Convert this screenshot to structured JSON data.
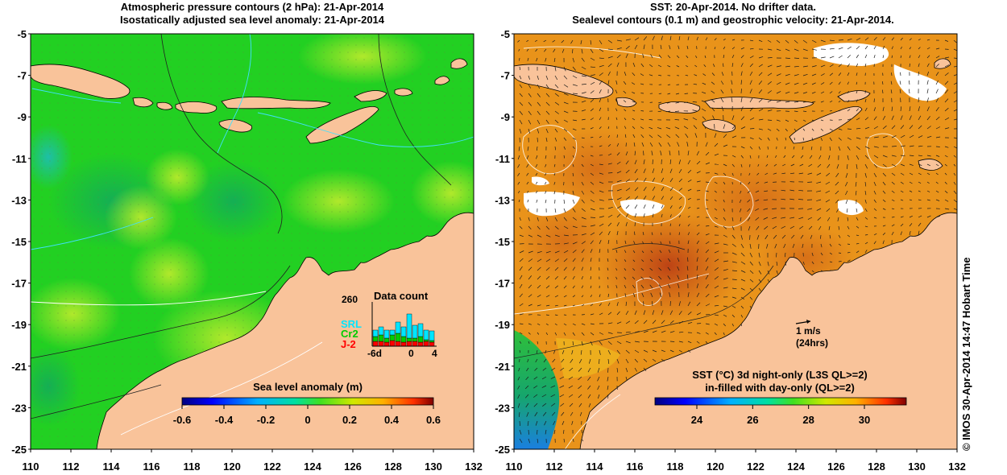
{
  "left_panel": {
    "title_line1": "Atmospheric pressure contours (2 hPa): 21-Apr-2014",
    "title_line2": "Isostatically adjusted sea level anomaly: 21-Apr-2014",
    "colorbar": {
      "title": "Sea level anomaly (m)",
      "ticks": [
        "-0.6",
        "-0.4",
        "-0.2",
        "0",
        "0.2",
        "0.4",
        "0.6"
      ],
      "range": [
        -0.6,
        0.6
      ]
    },
    "data_count": {
      "title": "Data count",
      "max_label": "260",
      "xticks": [
        "-6d",
        "0",
        "4"
      ],
      "series": [
        {
          "label": "SRL",
          "color": "#00e5ff"
        },
        {
          "label": "Cr2",
          "color": "#00cc00"
        },
        {
          "label": "J-2",
          "color": "#ff0000"
        }
      ]
    }
  },
  "right_panel": {
    "title_line1": "SST: 20-Apr-2014. No drifter data.",
    "title_line2": "Sealevel contours (0.1 m) and geostrophic velocity: 21-Apr-2014.",
    "velocity_key": {
      "line1": "1 m/s",
      "line2": "(24hrs)"
    },
    "colorbar": {
      "title_line1": "SST (°C)  3d night-only (L3S QL>=2)",
      "title_line2": "in-filled with day-only (QL>=2)",
      "ticks": [
        "24",
        "26",
        "28",
        "30"
      ],
      "range": [
        22.5,
        31.5
      ]
    }
  },
  "axes": {
    "lat_labels": [
      "-5",
      "-7",
      "-9",
      "-11",
      "-13",
      "-15",
      "-17",
      "-19",
      "-21",
      "-23",
      "-25"
    ],
    "lon_labels": [
      "110",
      "112",
      "114",
      "116",
      "118",
      "120",
      "122",
      "124",
      "126",
      "128",
      "130",
      "132"
    ]
  },
  "credit": "© IMOS 30-Apr-2014 14:47 Hobart Time",
  "colors": {
    "land": "#f9c39a",
    "ocean_sla": "#22d022",
    "ocean_sst": "#e9931a"
  }
}
